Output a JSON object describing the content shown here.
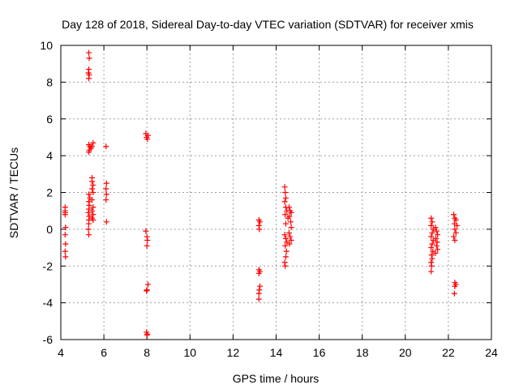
{
  "chart_data": {
    "type": "scatter",
    "title": "Day 128 of 2018, Sidereal Day-to-day VTEC variation (SDTVAR) for receiver xmis",
    "xlabel": "GPS time / hours",
    "ylabel": "SDTVAR / TECUs",
    "xlim": [
      4,
      24
    ],
    "ylim": [
      -6,
      10
    ],
    "xticks": [
      4,
      6,
      8,
      10,
      12,
      14,
      16,
      18,
      20,
      22,
      24
    ],
    "yticks": [
      -6,
      -4,
      -2,
      0,
      2,
      4,
      6,
      8,
      10
    ],
    "grid": true,
    "marker": "+",
    "color": "#ff0000",
    "series": [
      {
        "name": "SDTVAR",
        "points": [
          [
            4.2,
            1.2
          ],
          [
            4.2,
            1.0
          ],
          [
            4.2,
            0.9
          ],
          [
            4.2,
            0.8
          ],
          [
            4.22,
            0.1
          ],
          [
            4.2,
            -0.3
          ],
          [
            4.22,
            -0.8
          ],
          [
            4.2,
            -1.2
          ],
          [
            4.22,
            -1.5
          ],
          [
            5.3,
            9.6
          ],
          [
            5.32,
            9.3
          ],
          [
            5.3,
            8.7
          ],
          [
            5.28,
            8.5
          ],
          [
            5.32,
            8.4
          ],
          [
            5.3,
            8.2
          ],
          [
            5.3,
            4.6
          ],
          [
            5.35,
            4.5
          ],
          [
            5.4,
            4.4
          ],
          [
            5.32,
            4.3
          ],
          [
            5.45,
            4.5
          ],
          [
            5.5,
            4.7
          ],
          [
            5.3,
            4.2
          ],
          [
            5.3,
            1.9
          ],
          [
            5.35,
            1.7
          ],
          [
            5.3,
            1.5
          ],
          [
            5.32,
            1.3
          ],
          [
            5.3,
            1.1
          ],
          [
            5.28,
            0.9
          ],
          [
            5.32,
            0.7
          ],
          [
            5.3,
            0.5
          ],
          [
            5.3,
            0.3
          ],
          [
            5.28,
            0.0
          ],
          [
            5.3,
            -0.3
          ],
          [
            5.45,
            2.8
          ],
          [
            5.45,
            2.6
          ],
          [
            5.5,
            2.4
          ],
          [
            5.45,
            2.2
          ],
          [
            5.5,
            2.0
          ],
          [
            5.45,
            1.6
          ],
          [
            5.5,
            1.2
          ],
          [
            5.45,
            1.0
          ],
          [
            5.5,
            0.8
          ],
          [
            5.45,
            0.6
          ],
          [
            5.5,
            0.5
          ],
          [
            6.1,
            4.5
          ],
          [
            6.12,
            2.5
          ],
          [
            6.1,
            2.2
          ],
          [
            6.12,
            1.9
          ],
          [
            6.1,
            1.6
          ],
          [
            6.12,
            0.4
          ],
          [
            7.95,
            5.2
          ],
          [
            8.05,
            5.1
          ],
          [
            7.98,
            5.0
          ],
          [
            8.02,
            4.9
          ],
          [
            7.95,
            -0.1
          ],
          [
            8.0,
            -0.4
          ],
          [
            8.02,
            -0.6
          ],
          [
            8.0,
            -0.9
          ],
          [
            8.05,
            -3.0
          ],
          [
            8.0,
            -3.3
          ],
          [
            7.98,
            -3.35
          ],
          [
            7.98,
            -5.6
          ],
          [
            8.02,
            -5.7
          ],
          [
            8.0,
            -5.75
          ],
          [
            13.2,
            0.5
          ],
          [
            13.25,
            0.4
          ],
          [
            13.2,
            0.2
          ],
          [
            13.22,
            0.0
          ],
          [
            13.2,
            -2.2
          ],
          [
            13.25,
            -2.3
          ],
          [
            13.2,
            -2.4
          ],
          [
            13.25,
            -3.1
          ],
          [
            13.22,
            -3.3
          ],
          [
            13.2,
            -3.5
          ],
          [
            13.2,
            -3.8
          ],
          [
            14.4,
            2.3
          ],
          [
            14.42,
            2.0
          ],
          [
            14.45,
            1.7
          ],
          [
            14.4,
            1.5
          ],
          [
            14.45,
            1.2
          ],
          [
            14.5,
            1.0
          ],
          [
            14.42,
            0.8
          ],
          [
            14.55,
            0.6
          ],
          [
            14.45,
            0.3
          ],
          [
            14.4,
            -0.3
          ],
          [
            14.45,
            -0.5
          ],
          [
            14.5,
            -0.7
          ],
          [
            14.42,
            -0.9
          ],
          [
            14.48,
            -1.2
          ],
          [
            14.45,
            -1.5
          ],
          [
            14.4,
            -1.8
          ],
          [
            14.42,
            -2.0
          ],
          [
            14.6,
            1.2
          ],
          [
            14.65,
            1.0
          ],
          [
            14.7,
            0.9
          ],
          [
            14.62,
            0.7
          ],
          [
            14.68,
            0.4
          ],
          [
            14.7,
            0.1
          ],
          [
            14.6,
            -0.2
          ],
          [
            14.65,
            -0.4
          ],
          [
            14.7,
            -0.6
          ],
          [
            14.62,
            -0.8
          ],
          [
            21.2,
            0.6
          ],
          [
            21.25,
            0.4
          ],
          [
            21.2,
            0.2
          ],
          [
            21.3,
            0.0
          ],
          [
            21.25,
            -0.2
          ],
          [
            21.2,
            -0.4
          ],
          [
            21.3,
            -0.6
          ],
          [
            21.25,
            -0.8
          ],
          [
            21.2,
            -1.0
          ],
          [
            21.28,
            -1.2
          ],
          [
            21.22,
            -1.4
          ],
          [
            21.25,
            -1.6
          ],
          [
            21.2,
            -1.8
          ],
          [
            21.22,
            -2.0
          ],
          [
            21.2,
            -2.3
          ],
          [
            21.4,
            0.1
          ],
          [
            21.45,
            -0.1
          ],
          [
            21.5,
            -0.3
          ],
          [
            21.42,
            -0.5
          ],
          [
            21.48,
            -0.7
          ],
          [
            21.45,
            -0.9
          ],
          [
            21.5,
            -1.1
          ],
          [
            21.4,
            -1.3
          ],
          [
            22.25,
            0.8
          ],
          [
            22.3,
            0.6
          ],
          [
            22.35,
            0.5
          ],
          [
            22.28,
            0.3
          ],
          [
            22.4,
            0.2
          ],
          [
            22.3,
            0.0
          ],
          [
            22.35,
            -0.2
          ],
          [
            22.25,
            -0.4
          ],
          [
            22.3,
            -0.6
          ],
          [
            22.3,
            -2.9
          ],
          [
            22.35,
            -3.0
          ],
          [
            22.3,
            -3.1
          ],
          [
            22.28,
            -3.5
          ]
        ]
      }
    ]
  }
}
